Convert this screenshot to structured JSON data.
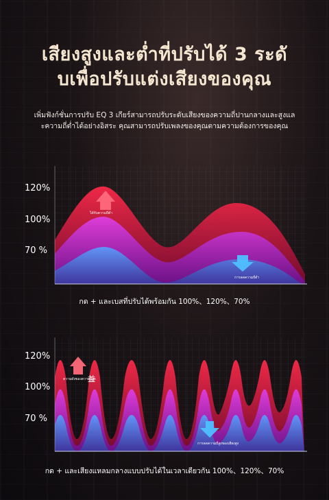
{
  "title_line1": "เสียงสูงและต่ำที่ปรับได้ 3 ระดั",
  "title_line2": "บเพื่อปรับแต่งเสียงของคุณ",
  "subtitle_line1": "เพิ่มฟังก์ชั่นการปรับ EQ 3 เกียร์สามารถปรับระดับเสียงของความถี่ปานกลางและสูงแล",
  "subtitle_line2": "ะความถี่ต่ำได้อย่างอิสระ คุณสามารถปรับเพลงของคุณตามความต้องการของคุณ",
  "chart1": {
    "y_labels": [
      "120%",
      "100%",
      "70 %"
    ],
    "up_label": "ได้รับความถี่ต่ำ",
    "down_label": "การลดความถี่ต่ำ",
    "caption": "กด + และเบสที่ปรับได้พร้อมกัน 100%、120%、70%"
  },
  "chart2": {
    "y_labels": [
      "120%",
      "100%",
      "70 %"
    ],
    "up_label": "ความดังของความถี่สูง",
    "up_glyph": "益",
    "down_label": "การลดความถี่สูงของเสียงสูง",
    "caption": "กด + และเสียงแหลมกลางแบบปรับได้ในเวลาเดียวกัน 100%、120%、70%"
  },
  "colors": {
    "red": "#e0204a",
    "magenta": "#c020c8",
    "blue": "#4aa8ff",
    "title": "#f4e6cf"
  }
}
